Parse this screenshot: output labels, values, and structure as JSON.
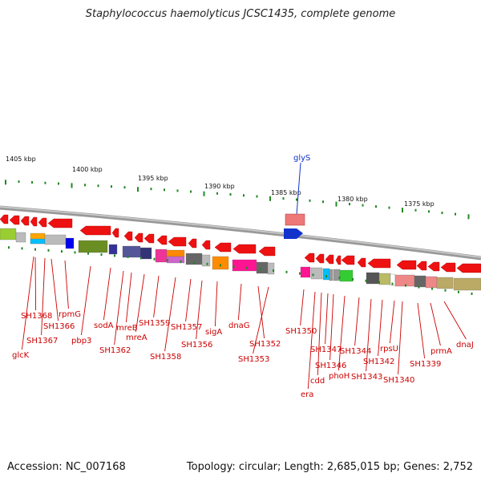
{
  "title": "Staphylococcus haemolyticus JCSC1435, complete genome",
  "footer": {
    "accession": "Accession: NC_007168",
    "summary": "Topology: circular; Length: 2,685,015 bp; Genes: 2,752"
  },
  "ruler": {
    "ticks": [
      "1405 kbp",
      "1400 kbp",
      "1395 kbp",
      "1390 kbp",
      "1385 kbp",
      "1380 kbp",
      "1375 kbp"
    ]
  },
  "colors": {
    "label_red": "#cc0000",
    "gene_forward": "#ee1111",
    "gene_blue": "#1133cc",
    "tick_green": "#228822",
    "backbone": "#888888"
  },
  "top_gene": {
    "label": "glyS"
  },
  "gene_labels": [
    "SH1368",
    "rpmG",
    "SH1366",
    "SH1367",
    "glcK",
    "pbp3",
    "sodA",
    "SH1362",
    "mreB",
    "mreA",
    "SH1359",
    "SH1358",
    "SH1357",
    "SH1356",
    "sigA",
    "dnaG",
    "SH1352",
    "SH1353",
    "SH1350",
    "era",
    "cdd",
    "SH1347",
    "SH1346",
    "phoH",
    "SH1344",
    "SH1343",
    "SH1342",
    "rpsU",
    "SH1340",
    "SH1339",
    "prmA",
    "dnaJ"
  ]
}
